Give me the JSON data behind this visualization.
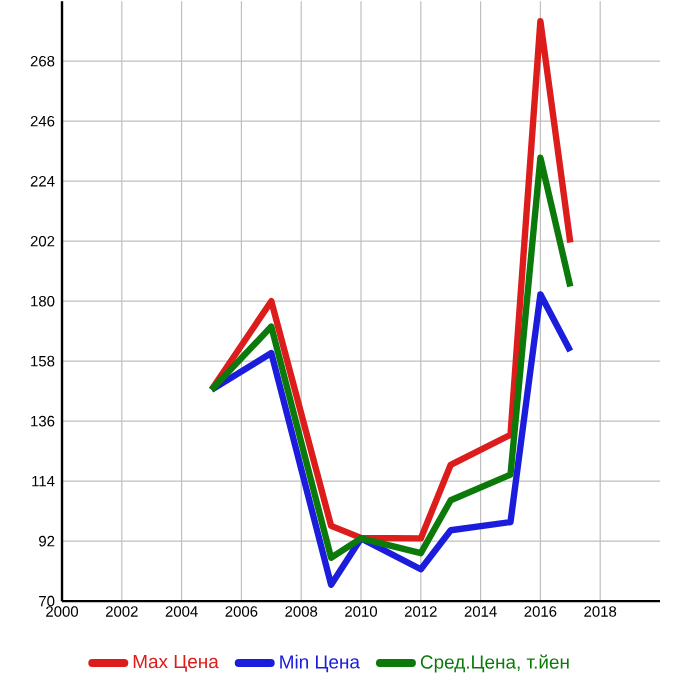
{
  "chart_data": {
    "type": "line",
    "x": [
      2005,
      2007,
      2009,
      2010,
      2012,
      2013,
      2015,
      2016,
      2017
    ],
    "series": [
      {
        "name": "Max Цена",
        "color": "#dd1c1c",
        "values": [
          147.5,
          180,
          97.6,
          93.2,
          93,
          120,
          131,
          282.7,
          201.5
        ]
      },
      {
        "name": "Min Цена",
        "color": "#1c1cdd",
        "values": [
          147.5,
          161,
          76,
          93,
          81.7,
          96,
          99,
          182.5,
          161.7
        ]
      },
      {
        "name": "Сред.Цена, т.йен",
        "color": "#0b7a0b",
        "values": [
          147.5,
          170.7,
          85.9,
          93,
          87.6,
          107,
          116.4,
          232.6,
          185.4
        ]
      }
    ],
    "xlim": [
      2000,
      2020
    ],
    "ylim": [
      70,
      290
    ],
    "xticks": [
      2000,
      2002,
      2004,
      2006,
      2008,
      2010,
      2012,
      2014,
      2016,
      2018
    ],
    "yticks": [
      70,
      92,
      114,
      136,
      158,
      180,
      202,
      224,
      246,
      268
    ],
    "grid": true,
    "legend": "bottom",
    "marker": "none",
    "line_style": "solid"
  }
}
